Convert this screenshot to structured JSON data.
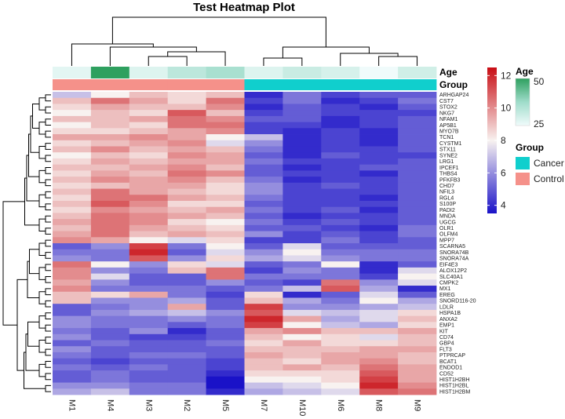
{
  "chart_data": {
    "type": "heatmap",
    "title": "Test Heatmap Plot",
    "columns": [
      "M1",
      "M4",
      "M3",
      "M2",
      "M5",
      "M7",
      "M10",
      "M6",
      "M8",
      "M9"
    ],
    "rows": [
      "ARHGAP24",
      "CST7",
      "STOX2",
      "NKG7",
      "NFAM1",
      "AP5B1",
      "MYO7B",
      "TCN1",
      "CYSTM1",
      "STX11",
      "SYNE2",
      "LRG1",
      "IPCEF1",
      "THBS4",
      "PFKFB3",
      "CHD7",
      "NFIL3",
      "RGL4",
      "S100P",
      "PADI2",
      "MNDA",
      "UGCG",
      "OLR1",
      "OLFM4",
      "MPP7",
      "SCARNA5",
      "SNORA74B",
      "SNORA74A",
      "EIF4E3",
      "ALOX12P2",
      "SLC40A1",
      "CMPK2",
      "MX1",
      "EREG",
      "SNORD116-20",
      "LDLR",
      "HSPA1B",
      "ANXA2",
      "EMP1",
      "KIT",
      "CD74",
      "GBP4",
      "FLT3",
      "PTPRCAP",
      "BCAT1",
      "ENDOD1",
      "CD52",
      "HIST1H2BH",
      "HIST1H2BL",
      "HIST1H2BM"
    ],
    "values": [
      [
        7.0,
        8.0,
        9.0,
        8.5,
        9.0,
        4.0,
        5.5,
        4.5,
        5.0,
        5.0
      ],
      [
        9.0,
        10.5,
        9.5,
        8.5,
        10.5,
        4.5,
        5.5,
        4.0,
        4.5,
        5.5
      ],
      [
        8.5,
        9.5,
        9.0,
        9.0,
        10.0,
        4.0,
        5.0,
        4.5,
        4.0,
        5.0
      ],
      [
        8.0,
        9.0,
        8.5,
        11.0,
        9.0,
        4.5,
        5.0,
        4.5,
        4.5,
        4.5
      ],
      [
        9.0,
        9.0,
        9.5,
        10.5,
        10.0,
        5.0,
        5.0,
        4.0,
        4.5,
        5.0
      ],
      [
        8.0,
        9.0,
        8.5,
        10.5,
        10.5,
        4.5,
        4.5,
        4.0,
        4.5,
        5.0
      ],
      [
        8.5,
        8.5,
        9.0,
        9.5,
        10.0,
        4.5,
        4.0,
        4.5,
        4.0,
        5.0
      ],
      [
        9.5,
        9.5,
        10.0,
        9.5,
        8.0,
        7.0,
        4.0,
        4.5,
        4.0,
        5.0
      ],
      [
        8.5,
        9.0,
        9.5,
        10.0,
        7.5,
        6.0,
        4.0,
        4.5,
        4.0,
        5.0
      ],
      [
        9.0,
        10.0,
        9.0,
        9.5,
        9.0,
        5.5,
        4.0,
        4.5,
        4.5,
        5.0
      ],
      [
        8.0,
        9.0,
        8.5,
        10.0,
        9.5,
        5.0,
        4.0,
        5.0,
        4.5,
        4.5
      ],
      [
        8.5,
        9.5,
        9.0,
        9.5,
        9.5,
        5.5,
        4.5,
        4.5,
        4.5,
        5.0
      ],
      [
        9.0,
        9.0,
        9.5,
        10.0,
        9.0,
        5.0,
        4.0,
        4.5,
        5.0,
        5.0
      ],
      [
        8.5,
        9.5,
        9.0,
        10.5,
        10.0,
        5.0,
        4.5,
        4.5,
        4.0,
        5.0
      ],
      [
        9.0,
        10.0,
        9.5,
        10.0,
        9.0,
        5.5,
        4.0,
        4.5,
        4.5,
        5.0
      ],
      [
        8.5,
        9.0,
        9.5,
        9.5,
        8.5,
        6.0,
        4.5,
        5.0,
        4.5,
        5.0
      ],
      [
        9.0,
        10.5,
        9.5,
        9.0,
        8.5,
        6.0,
        4.5,
        4.5,
        4.5,
        5.0
      ],
      [
        8.5,
        10.5,
        10.5,
        9.5,
        9.0,
        5.5,
        4.5,
        4.5,
        4.0,
        5.0
      ],
      [
        9.0,
        11.0,
        10.0,
        8.5,
        8.5,
        5.0,
        4.5,
        4.5,
        4.5,
        5.0
      ],
      [
        8.5,
        10.0,
        9.5,
        9.0,
        9.5,
        5.5,
        4.5,
        5.0,
        4.0,
        5.0
      ],
      [
        9.0,
        10.5,
        10.0,
        9.5,
        9.0,
        5.0,
        4.0,
        4.5,
        4.5,
        5.0
      ],
      [
        9.5,
        10.5,
        10.0,
        8.5,
        8.0,
        5.5,
        4.5,
        5.0,
        4.5,
        5.0
      ],
      [
        9.0,
        10.5,
        9.5,
        9.0,
        8.5,
        5.0,
        5.0,
        4.5,
        4.0,
        5.5
      ],
      [
        9.5,
        10.5,
        9.0,
        9.5,
        9.0,
        6.0,
        4.5,
        5.0,
        4.5,
        5.5
      ],
      [
        10.0,
        9.5,
        8.0,
        7.5,
        8.5,
        4.5,
        4.5,
        5.5,
        4.5,
        5.0
      ],
      [
        5.0,
        6.0,
        11.5,
        5.5,
        8.0,
        5.0,
        7.5,
        5.0,
        5.0,
        5.0
      ],
      [
        5.5,
        5.5,
        12.0,
        5.0,
        7.5,
        6.0,
        8.0,
        5.5,
        5.5,
        5.5
      ],
      [
        6.0,
        5.5,
        11.0,
        6.0,
        8.5,
        6.5,
        7.5,
        6.0,
        5.5,
        5.5
      ],
      [
        10.5,
        8.0,
        6.0,
        8.5,
        7.5,
        5.0,
        5.5,
        8.0,
        4.0,
        5.0
      ],
      [
        10.0,
        6.0,
        5.5,
        9.0,
        10.5,
        4.5,
        6.0,
        5.5,
        4.0,
        7.5
      ],
      [
        10.0,
        7.5,
        5.0,
        5.0,
        10.5,
        5.5,
        5.5,
        5.5,
        4.5,
        8.0
      ],
      [
        9.5,
        6.0,
        5.0,
        5.0,
        6.0,
        5.0,
        4.5,
        10.5,
        6.0,
        7.5
      ],
      [
        10.0,
        5.5,
        5.5,
        5.5,
        5.0,
        5.5,
        7.0,
        11.0,
        6.5,
        4.0
      ],
      [
        9.0,
        8.5,
        9.5,
        5.5,
        4.5,
        8.5,
        4.0,
        5.0,
        7.5,
        5.0
      ],
      [
        9.0,
        6.0,
        6.0,
        6.5,
        5.0,
        9.0,
        6.5,
        5.5,
        8.0,
        6.5
      ],
      [
        5.0,
        5.5,
        6.0,
        9.5,
        5.0,
        11.5,
        6.0,
        6.0,
        6.5,
        7.0
      ],
      [
        5.0,
        6.0,
        6.5,
        7.0,
        6.0,
        11.0,
        7.5,
        7.0,
        7.5,
        8.5
      ],
      [
        6.0,
        5.5,
        5.5,
        6.0,
        5.5,
        12.0,
        9.5,
        6.5,
        7.5,
        9.0
      ],
      [
        6.0,
        5.5,
        5.5,
        5.0,
        5.5,
        11.5,
        8.0,
        7.0,
        6.5,
        8.5
      ],
      [
        5.5,
        5.0,
        6.0,
        4.0,
        5.0,
        9.5,
        10.0,
        9.0,
        9.0,
        9.5
      ],
      [
        6.0,
        5.0,
        4.5,
        4.5,
        5.0,
        9.0,
        8.0,
        8.5,
        7.5,
        9.0
      ],
      [
        5.0,
        5.5,
        5.0,
        5.0,
        5.5,
        8.5,
        9.5,
        8.5,
        8.5,
        9.0
      ],
      [
        6.0,
        5.0,
        5.0,
        5.0,
        5.0,
        9.0,
        9.0,
        9.0,
        9.5,
        9.5
      ],
      [
        5.5,
        5.0,
        5.5,
        5.5,
        5.0,
        9.5,
        9.0,
        9.5,
        9.5,
        9.0
      ],
      [
        5.0,
        4.5,
        5.0,
        5.0,
        4.5,
        9.0,
        8.5,
        9.5,
        10.0,
        9.0
      ],
      [
        5.5,
        5.0,
        5.5,
        5.0,
        4.5,
        9.0,
        9.5,
        9.0,
        10.5,
        9.5
      ],
      [
        5.0,
        5.5,
        5.0,
        5.0,
        4.0,
        8.5,
        8.5,
        8.5,
        11.0,
        9.5
      ],
      [
        5.0,
        5.5,
        5.0,
        5.0,
        3.5,
        8.0,
        8.0,
        8.5,
        11.5,
        9.5
      ],
      [
        6.0,
        6.0,
        5.5,
        5.5,
        3.5,
        7.0,
        7.5,
        8.0,
        12.0,
        10.0
      ],
      [
        6.5,
        7.0,
        5.5,
        5.5,
        4.0,
        6.5,
        7.0,
        7.5,
        11.0,
        10.5
      ]
    ],
    "annotations": {
      "Age": {
        "label": "Age",
        "values": [
          27,
          50,
          28,
          33,
          36,
          28,
          31,
          29,
          25,
          30
        ]
      },
      "Group": {
        "label": "Group",
        "values": [
          "Control",
          "Control",
          "Control",
          "Control",
          "Control",
          "Cancer",
          "Cancer",
          "Cancer",
          "Cancer",
          "Cancer"
        ]
      }
    },
    "colorbar": {
      "min": 3.5,
      "max": 12.5,
      "ticks": [
        4,
        6,
        8,
        10,
        12
      ],
      "colors": [
        "#1a12c8",
        "#f8f2f0",
        "#c80d14"
      ]
    },
    "legend": {
      "age": {
        "title": "Age",
        "ticks": [
          50,
          25
        ],
        "colors": [
          "#2ea05f",
          "#9fdcca",
          "#f0fbfb"
        ]
      },
      "group": {
        "title": "Group",
        "items": [
          {
            "label": "Cancer",
            "color": "#10cfcd"
          },
          {
            "label": "Control",
            "color": "#f5918a"
          }
        ]
      }
    },
    "column_dendrogram": true,
    "row_dendrogram": true
  }
}
